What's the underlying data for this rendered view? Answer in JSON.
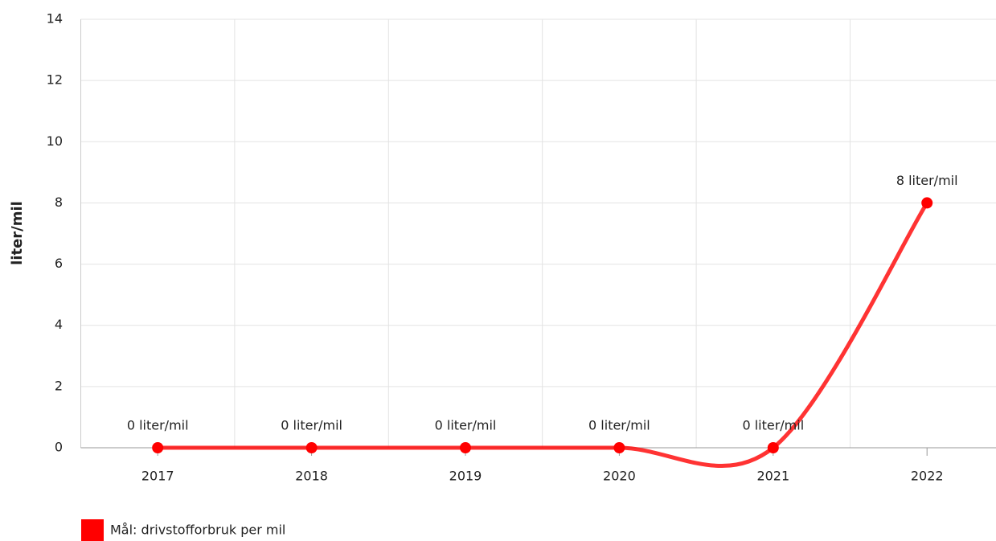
{
  "chart_data": {
    "type": "line",
    "categories": [
      "2017",
      "2018",
      "2019",
      "2020",
      "2021",
      "2022"
    ],
    "series": [
      {
        "name": "Mål: drivstofforbruk per mil",
        "color": "#ff0000",
        "values": [
          0,
          0,
          0,
          0,
          0,
          8
        ],
        "value_labels": [
          "0 liter/mil",
          "0 liter/mil",
          "0 liter/mil",
          "0 liter/mil",
          "0 liter/mil",
          "8 liter/mil"
        ]
      }
    ],
    "y_label": "liter/mil",
    "ylim": [
      0,
      14
    ],
    "yticks": [
      0,
      2,
      4,
      6,
      8,
      10,
      12,
      14
    ],
    "grid": true,
    "legend": "bottom-left"
  }
}
